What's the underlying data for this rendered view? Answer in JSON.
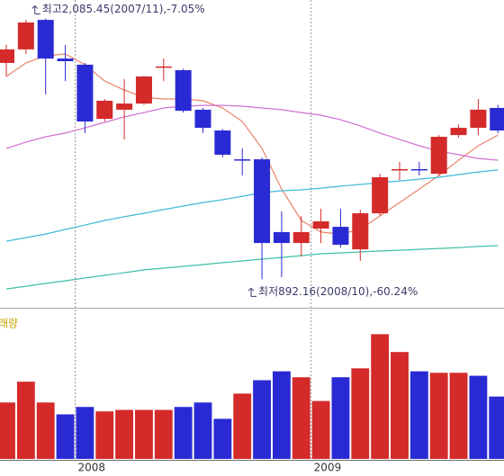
{
  "chart_data": {
    "type": "candlestick",
    "categories": [
      null,
      null,
      null,
      null,
      "2008",
      null,
      null,
      null,
      null,
      null,
      null,
      null,
      null,
      null,
      null,
      null,
      "2009",
      null,
      null,
      null,
      null,
      null,
      null,
      null,
      null,
      null
    ],
    "open": [
      1882,
      1944,
      2079,
      1902,
      1874,
      1626,
      1668,
      1696,
      1861,
      1849,
      1668,
      1573,
      1441,
      1441,
      1108,
      1058,
      1124,
      1132,
      1029,
      1194,
      1392,
      1396,
      1375,
      1552,
      1585,
      1676
    ],
    "high": [
      1964,
      2079,
      2085.45,
      1964,
      1882,
      1717,
      1808,
      1823,
      1902,
      1855,
      1676,
      1580,
      1491,
      1450,
      1202,
      1182,
      1215,
      1215,
      1210,
      1375,
      1429,
      1429,
      1552,
      1600,
      1717,
      1690
    ],
    "low": [
      1820,
      1923,
      1738,
      1799,
      1561,
      1614,
      1532,
      1690,
      1799,
      1655,
      1561,
      1450,
      1367,
      892.16,
      902,
      996,
      1058,
      1037,
      976,
      1182,
      1346,
      1367,
      1367,
      1540,
      1552,
      1560
    ],
    "close": [
      1944,
      2067,
      1902,
      1890,
      1614,
      1709,
      1696,
      1820,
      1866,
      1663,
      1585,
      1462,
      1436,
      1058,
      1058,
      1108,
      1157,
      1050,
      1194,
      1359,
      1396,
      1392,
      1544,
      1585,
      1668,
      1573
    ],
    "up_color": "#d42a2a",
    "down_color": "#2a2ad4",
    "ylim": [
      770,
      2170
    ],
    "lines": [
      {
        "color": "#e8836a",
        "values": [
          1820,
          1882,
          1915,
          1923,
          1874,
          1799,
          1758,
          1725,
          1717,
          1717,
          1709,
          1676,
          1614,
          1491,
          1305,
          1161,
          1108,
          1099,
          1120,
          1182,
          1243,
          1305,
          1367,
          1437,
          1503,
          1552
        ]
      },
      {
        "color": "#d070d0",
        "values": [
          1491,
          1520,
          1544,
          1561,
          1585,
          1610,
          1635,
          1655,
          1676,
          1684,
          1688,
          1688,
          1684,
          1676,
          1668,
          1655,
          1643,
          1622,
          1594,
          1561,
          1532,
          1503,
          1478,
          1462,
          1445,
          1437
        ]
      },
      {
        "color": "#40b8d8",
        "values": [
          1066,
          1083,
          1099,
          1120,
          1140,
          1161,
          1178,
          1194,
          1211,
          1227,
          1243,
          1256,
          1272,
          1289,
          1297,
          1301,
          1309,
          1318,
          1326,
          1334,
          1342,
          1350,
          1359,
          1371,
          1383,
          1392
        ]
      },
      {
        "color": "#40c0a8",
        "values": [
          848,
          860,
          873,
          885,
          898,
          910,
          922,
          935,
          943,
          951,
          959,
          968,
          976,
          984,
          992,
          1000,
          1009,
          1013,
          1017,
          1021,
          1025,
          1029,
          1033,
          1037,
          1042,
          1046
        ]
      }
    ],
    "annotations": [
      {
        "text": "최고2,085.45(2007/11),-7.05%",
        "index": 2,
        "point": "high"
      },
      {
        "text": "최저892.16(2008/10),-60.24%",
        "index": 13,
        "point": "low"
      }
    ],
    "volume": {
      "label": "래량",
      "ylim": [
        0,
        100
      ],
      "values": [
        38,
        52,
        38,
        30,
        35,
        32,
        33,
        33,
        33,
        35,
        38,
        27,
        44,
        53,
        59,
        55,
        39,
        55,
        61,
        84,
        72,
        59,
        58,
        58,
        56,
        42
      ],
      "colors": [
        "#d42a2a",
        "#d42a2a",
        "#d42a2a",
        "#2a2ad4",
        "#2a2ad4",
        "#d42a2a",
        "#d42a2a",
        "#d42a2a",
        "#d42a2a",
        "#2a2ad4",
        "#2a2ad4",
        "#2a2ad4",
        "#d42a2a",
        "#2a2ad4",
        "#2a2ad4",
        "#d42a2a",
        "#d42a2a",
        "#2a2ad4",
        "#d42a2a",
        "#d42a2a",
        "#d42a2a",
        "#2a2ad4",
        "#d42a2a",
        "#d42a2a",
        "#2a2ad4",
        "#2a2ad4"
      ]
    }
  }
}
